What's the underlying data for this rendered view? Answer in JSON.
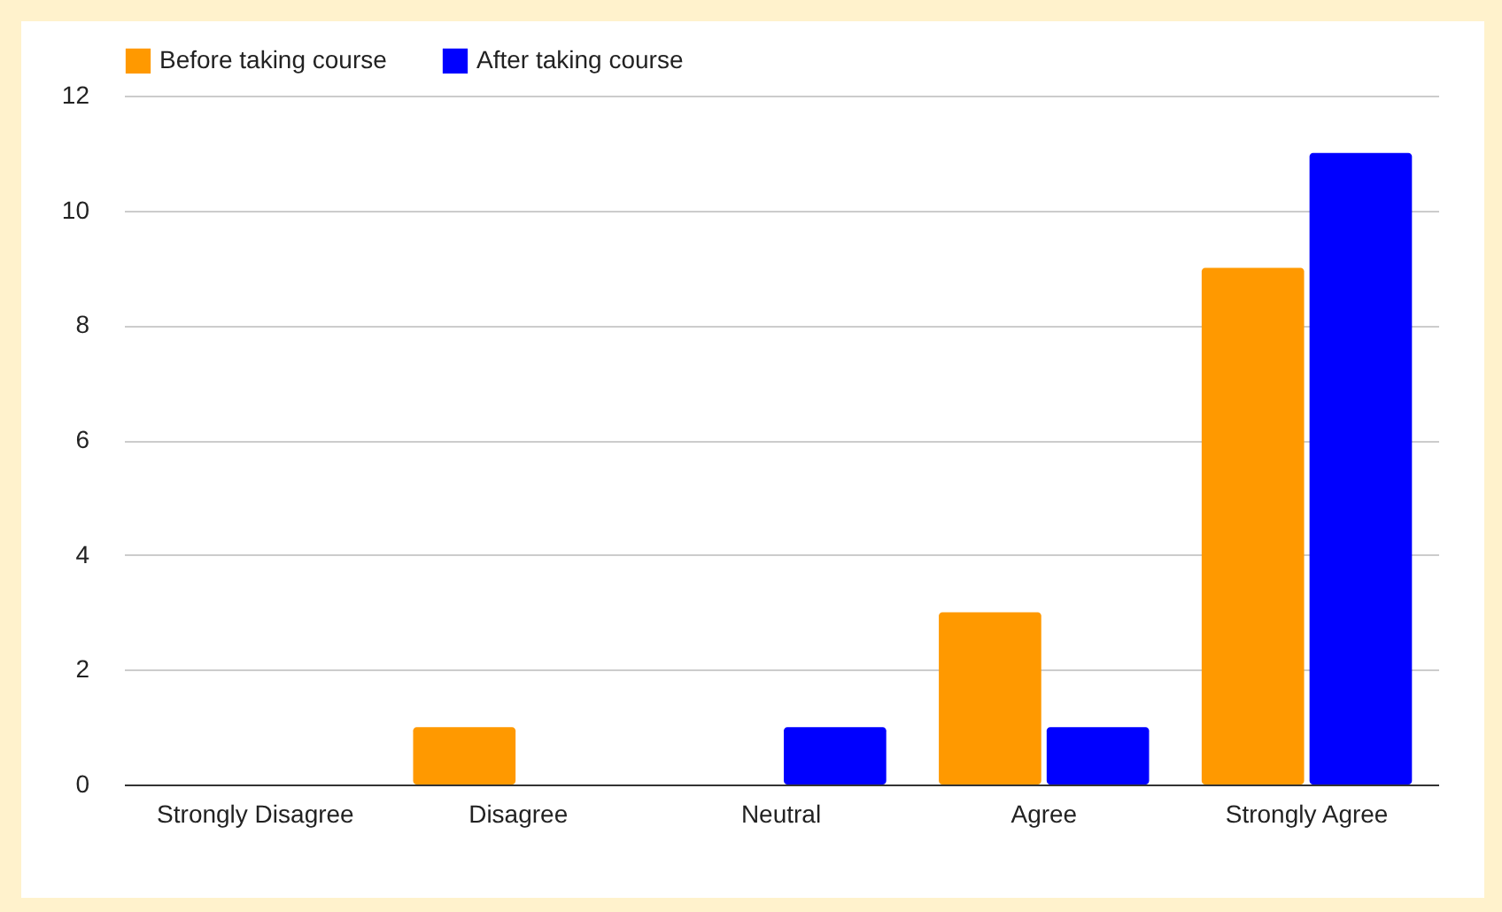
{
  "chart_data": {
    "type": "bar",
    "categories": [
      "Strongly Disagree",
      "Disagree",
      "Neutral",
      "Agree",
      "Strongly Agree"
    ],
    "series": [
      {
        "name": "Before taking course",
        "color": "#ff9900",
        "values": [
          0,
          1,
          0,
          3,
          9
        ]
      },
      {
        "name": "After taking course",
        "color": "#0000ff",
        "values": [
          0,
          0,
          1,
          1,
          11
        ]
      }
    ],
    "ylim": [
      0,
      12
    ],
    "yticks": [
      0,
      2,
      4,
      6,
      8,
      10,
      12
    ],
    "grid": "y",
    "legend": "top"
  }
}
